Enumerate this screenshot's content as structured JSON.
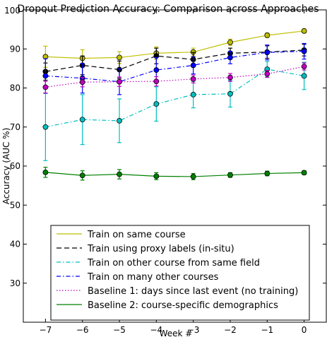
{
  "chart_data": {
    "type": "line",
    "title": "Dropout Prediction Accuracy: Comparison across Approaches",
    "xlabel": "Week #",
    "ylabel": "Accuracy (AUC %)",
    "x": [
      -7,
      -6,
      -5,
      -4,
      -3,
      -2,
      -1,
      0
    ],
    "xlim": [
      -7.6,
      0.6
    ],
    "ylim": [
      20,
      100
    ],
    "xticks": [
      -7,
      -6,
      -5,
      -4,
      -3,
      -2,
      -1,
      0
    ],
    "xtick_labels": [
      "−7",
      "−6",
      "−5",
      "−4",
      "−3",
      "−2",
      "−1",
      "0"
    ],
    "yticks": [
      30,
      40,
      50,
      60,
      70,
      80,
      90
    ],
    "ytick_labels": [
      "30",
      "40",
      "50",
      "60",
      "70",
      "80",
      "90"
    ],
    "top_tick_label": "100",
    "grid": false,
    "legend_position": "lower-center",
    "series": [
      {
        "name": "Train on same course",
        "color": "#bfbf00",
        "dash": "solid",
        "values": [
          88.0,
          87.6,
          87.8,
          88.9,
          89.2,
          91.7,
          93.5,
          94.6
        ],
        "errors": [
          2.7,
          2.2,
          1.5,
          1.6,
          1.0,
          0.8,
          0.6,
          0.5
        ]
      },
      {
        "name": "Train using proxy labels (in-situ)",
        "color": "#000000",
        "dash": "dashed",
        "values": [
          84.2,
          85.8,
          84.7,
          88.2,
          87.3,
          88.9,
          89.2,
          89.7
        ],
        "errors": [
          2.2,
          2.4,
          2.2,
          2.0,
          1.8,
          1.3,
          1.6,
          1.5
        ]
      },
      {
        "name": "Train on other course from same field",
        "color": "#00bfbf",
        "dash": "dashdot",
        "values": [
          70.0,
          71.9,
          71.6,
          75.9,
          78.3,
          78.5,
          84.8,
          83.1
        ],
        "errors": [
          8.6,
          6.4,
          5.6,
          4.4,
          3.4,
          3.4,
          2.0,
          3.5
        ]
      },
      {
        "name": "Train on many other courses",
        "color": "#0000ff",
        "dash": "dashdot",
        "values": [
          83.1,
          82.5,
          81.6,
          84.6,
          85.8,
          87.8,
          89.1,
          89.4
        ],
        "errors": [
          4.4,
          3.8,
          3.3,
          3.2,
          2.2,
          1.6,
          1.9,
          2.0
        ]
      },
      {
        "name": "Baseline 1: days since last event (no training)",
        "color": "#bf00bf",
        "dash": "dotted",
        "values": [
          80.2,
          81.5,
          81.6,
          81.7,
          82.3,
          82.7,
          83.6,
          85.5
        ],
        "errors": [
          1.5,
          1.2,
          1.2,
          1.2,
          1.0,
          1.0,
          0.9,
          0.9
        ]
      },
      {
        "name": "Baseline 2: course-specific demographics",
        "color": "#008000",
        "dash": "solid",
        "values": [
          58.4,
          57.6,
          57.9,
          57.4,
          57.3,
          57.7,
          58.1,
          58.3
        ],
        "errors": [
          1.3,
          1.2,
          1.2,
          0.9,
          0.8,
          0.6,
          0.6,
          0.5
        ]
      }
    ]
  }
}
